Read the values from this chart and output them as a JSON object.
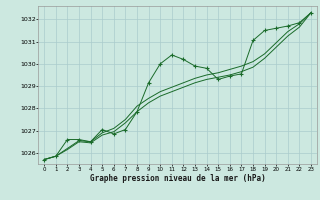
{
  "title": "Graphe pression niveau de la mer (hPa)",
  "bg_color": "#cce8e0",
  "grid_color": "#aacccc",
  "line_color": "#1a6b2a",
  "marker_color": "#1a6b2a",
  "xlim": [
    -0.5,
    23.5
  ],
  "ylim": [
    1025.5,
    1032.6
  ],
  "yticks": [
    1026,
    1027,
    1028,
    1029,
    1030,
    1031,
    1032
  ],
  "xticks": [
    0,
    1,
    2,
    3,
    4,
    5,
    6,
    7,
    8,
    9,
    10,
    11,
    12,
    13,
    14,
    15,
    16,
    17,
    18,
    19,
    20,
    21,
    22,
    23
  ],
  "series1_x": [
    0,
    1,
    2,
    3,
    4,
    5,
    6,
    7,
    8,
    9,
    10,
    11,
    12,
    13,
    14,
    15,
    16,
    17,
    18,
    19,
    20,
    21,
    22,
    23
  ],
  "series1_y": [
    1025.7,
    1025.85,
    1026.6,
    1026.6,
    1026.5,
    1027.05,
    1026.85,
    1027.05,
    1027.85,
    1029.15,
    1030.0,
    1030.4,
    1030.2,
    1029.9,
    1029.8,
    1029.3,
    1029.45,
    1029.55,
    1031.05,
    1031.5,
    1031.6,
    1031.7,
    1031.85,
    1032.3
  ],
  "series2_x": [
    0,
    1,
    2,
    3,
    4,
    5,
    6,
    7,
    8,
    9,
    10,
    11,
    12,
    13,
    14,
    15,
    16,
    17,
    18,
    19,
    20,
    21,
    22,
    23
  ],
  "series2_y": [
    1025.7,
    1025.85,
    1026.2,
    1026.55,
    1026.5,
    1026.9,
    1027.1,
    1027.5,
    1028.1,
    1028.45,
    1028.75,
    1028.95,
    1029.15,
    1029.35,
    1029.5,
    1029.6,
    1029.75,
    1029.9,
    1030.1,
    1030.45,
    1030.95,
    1031.45,
    1031.8,
    1032.3
  ],
  "series3_x": [
    0,
    1,
    2,
    3,
    4,
    5,
    6,
    7,
    8,
    9,
    10,
    11,
    12,
    13,
    14,
    15,
    16,
    17,
    18,
    19,
    20,
    21,
    22,
    23
  ],
  "series3_y": [
    1025.7,
    1025.85,
    1026.15,
    1026.5,
    1026.45,
    1026.8,
    1026.95,
    1027.35,
    1027.85,
    1028.25,
    1028.55,
    1028.75,
    1028.95,
    1029.15,
    1029.3,
    1029.4,
    1029.5,
    1029.65,
    1029.85,
    1030.25,
    1030.75,
    1031.25,
    1031.65,
    1032.3
  ]
}
